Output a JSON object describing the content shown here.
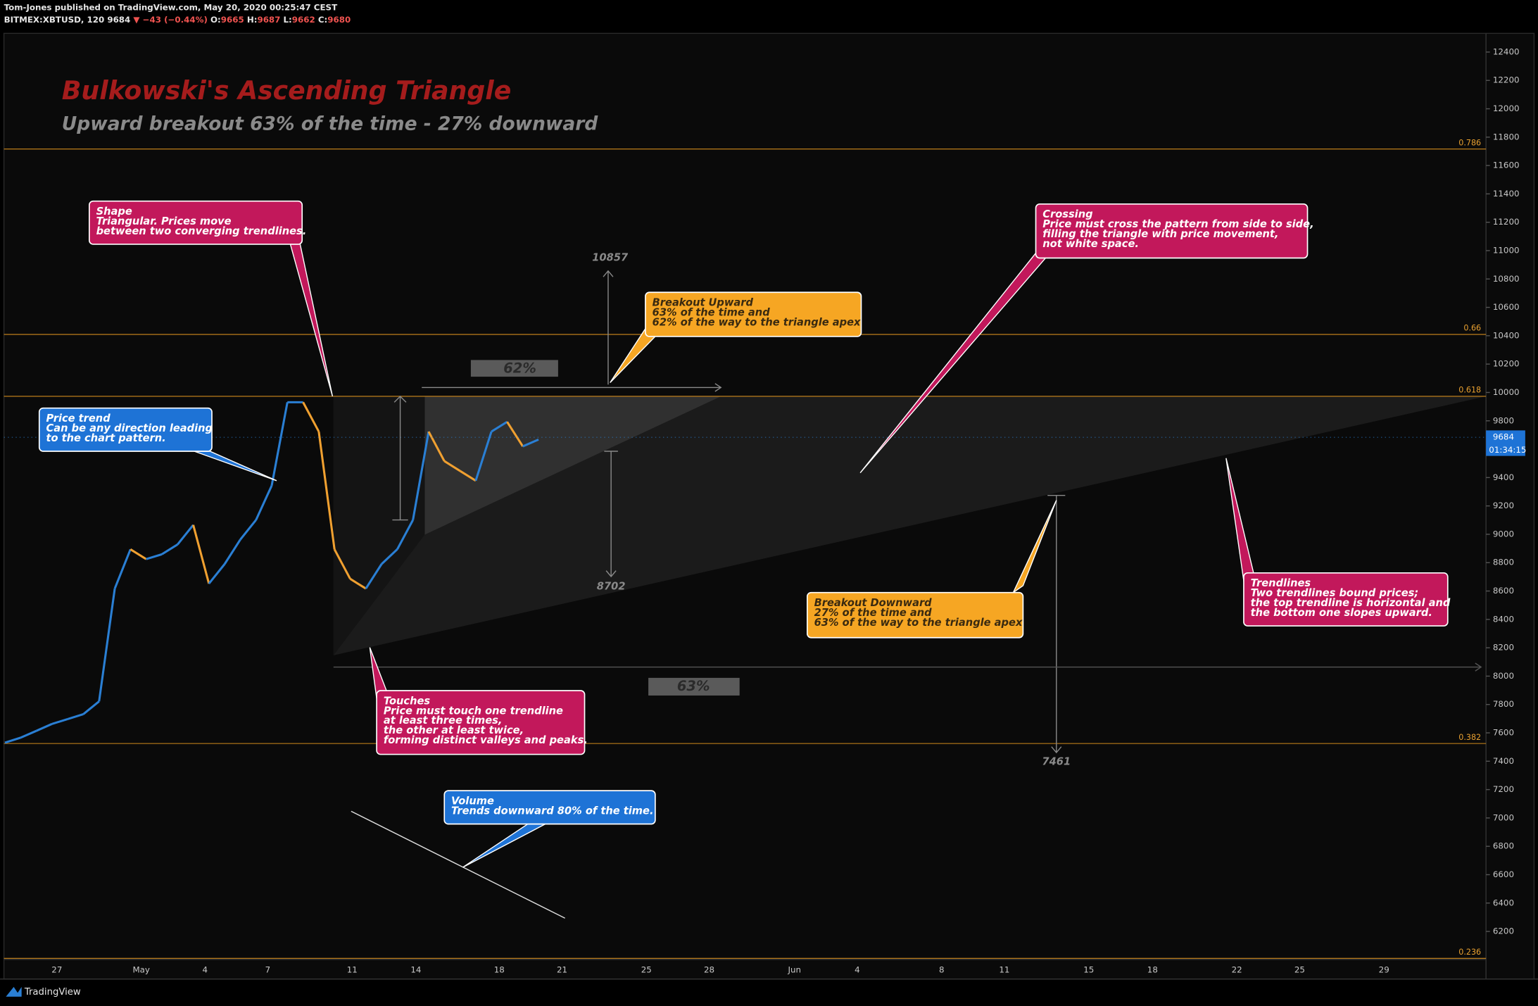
{
  "header": {
    "publisher": "Tom-Jones published on TradingView.com, May 20, 2020 00:25:47 CEST",
    "symbol": "BITMEX:XBTUSD, 120",
    "last": "9684",
    "change": "▼ −43 (−0.44%)",
    "ohlc": [
      {
        "key": "O:",
        "value": "9665"
      },
      {
        "key": "H:",
        "value": "9687"
      },
      {
        "key": "L:",
        "value": "9662"
      },
      {
        "key": "C:",
        "value": "9680"
      }
    ]
  },
  "title": "Bulkowski's Ascending Triangle",
  "subtitle": "Upward breakout 63% of the time - 27% downward",
  "price_axis": {
    "ylim": [
      6000,
      12500
    ],
    "yticks": [
      6200,
      6400,
      6600,
      6800,
      7000,
      7200,
      7400,
      7600,
      7800,
      8000,
      8200,
      8400,
      8600,
      8800,
      9000,
      9200,
      9400,
      9600,
      9800,
      10000,
      10200,
      10400,
      10600,
      10800,
      11000,
      11200,
      11400,
      11600,
      11800,
      12000,
      12200,
      12400
    ],
    "last_price": 9684,
    "countdown": "01:34:15"
  },
  "fib_levels": [
    {
      "value": 11716,
      "label": "0.786"
    },
    {
      "value": 10409,
      "label": "0.66"
    },
    {
      "value": 9973,
      "label": "0.618"
    },
    {
      "value": 7525,
      "label": "0.382"
    },
    {
      "value": 6010,
      "label": "0.236"
    }
  ],
  "time_axis": [
    "27",
    "May",
    "4",
    "7",
    "11",
    "14",
    "18",
    "21",
    "25",
    "28",
    "Jun",
    "4",
    "8",
    "11",
    "15",
    "18",
    "22",
    "25",
    "29"
  ],
  "price_path": [
    7531,
    7566,
    7614,
    7663,
    7697,
    7732,
    7822,
    8617,
    8894,
    8825,
    8859,
    8928,
    9066,
    8652,
    8790,
    8963,
    9101,
    9343,
    9931,
    9931,
    9724,
    8894,
    8686,
    8617,
    8790,
    8894,
    9101,
    9724,
    9516,
    9447,
    9378,
    9724,
    9793,
    9620,
    9668
  ],
  "measurements": {
    "upper_target": 10857,
    "lower_target": 8702,
    "down_target": 7461,
    "up_share": "62%",
    "down_share": "63%"
  },
  "annotations": [
    {
      "title": "Shape",
      "lines": [
        "Triangular. Prices move",
        "between two converging trendlines."
      ]
    },
    {
      "title": "Price trend",
      "lines": [
        "Can be any direction leading",
        "to the chart pattern."
      ]
    },
    {
      "title": "Touches",
      "lines": [
        "Price must touch one trendline",
        "at least three times,",
        "the other at least twice,",
        "forming distinct valleys and peaks."
      ]
    },
    {
      "title": "Volume",
      "lines": [
        "Trends downward 80% of the time."
      ]
    },
    {
      "title": "Breakout Upward",
      "lines": [
        "63% of the time and",
        "62% of the way to the triangle apex"
      ]
    },
    {
      "title": "Crossing",
      "lines": [
        "Price must cross the pattern from side to side,",
        "filling the triangle with price movement,",
        "not white space."
      ]
    },
    {
      "title": "Breakout Downward",
      "lines": [
        "27% of the time and",
        "63% of the way to the triangle apex"
      ]
    },
    {
      "title": "Trendlines",
      "lines": [
        "Two trendlines bound prices;",
        "the top trendline is horizontal and",
        "the bottom one slopes upward."
      ]
    }
  ],
  "footer": "TradingView"
}
